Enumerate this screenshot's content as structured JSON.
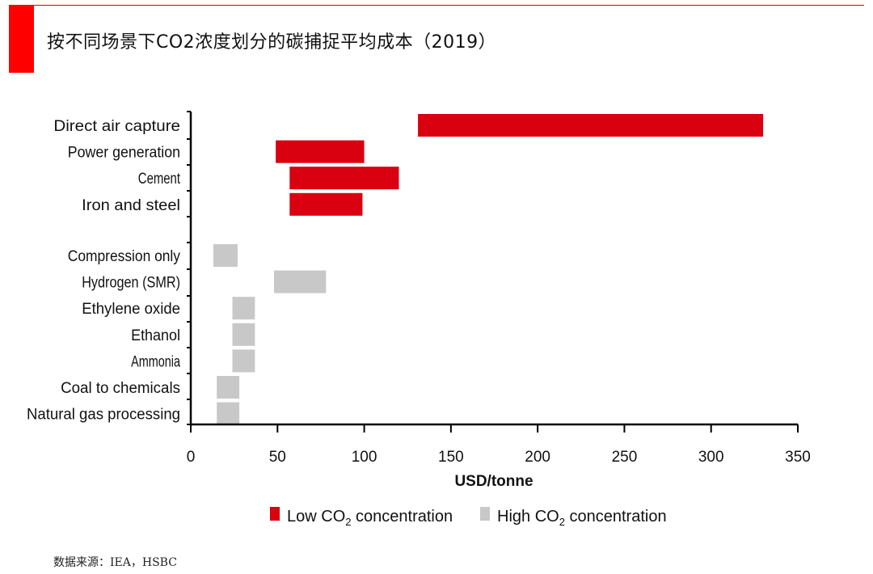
{
  "header": {
    "title": "按不同场景下CO2浓度划分的碳捕捉平均成本（2019）",
    "accent_color": "#ff0000"
  },
  "source": "数据来源：IEA，HSBC",
  "chart_data": {
    "type": "bar",
    "orientation": "horizontal-range",
    "title": "按不同场景下CO2浓度划分的碳捕捉平均成本（2019）",
    "xlabel": "USD/tonne",
    "ylabel": "",
    "xlim": [
      0,
      350
    ],
    "xticks": [
      0,
      50,
      100,
      150,
      200,
      250,
      300,
      350
    ],
    "grid": false,
    "legend_position": "bottom",
    "series": [
      {
        "name": "Low CO2 concentration",
        "label_main": "Low CO",
        "label_sub": "2",
        "label_tail": " concentration",
        "color": "#d9000f",
        "items": [
          {
            "category": "Direct air capture",
            "min": 131,
            "max": 330
          },
          {
            "category": "Power generation",
            "min": 49,
            "max": 100
          },
          {
            "category": "Cement",
            "min": 57,
            "max": 120
          },
          {
            "category": "Iron and steel",
            "min": 57,
            "max": 99
          }
        ]
      },
      {
        "name": "High CO2 concentration",
        "label_main": "High CO",
        "label_sub": "2",
        "label_tail": " concentration",
        "color": "#c8c8c8",
        "items": [
          {
            "category": "Compression only",
            "min": 13,
            "max": 27
          },
          {
            "category": "Hydrogen (SMR)",
            "min": 48,
            "max": 78
          },
          {
            "category": "Ethylene oxide",
            "min": 24,
            "max": 37
          },
          {
            "category": "Ethanol",
            "min": 24,
            "max": 37
          },
          {
            "category": "Ammonia",
            "min": 24,
            "max": 37
          },
          {
            "category": "Coal to chemicals",
            "min": 15,
            "max": 28
          },
          {
            "category": "Natural gas processing",
            "min": 15,
            "max": 28
          }
        ]
      }
    ]
  }
}
